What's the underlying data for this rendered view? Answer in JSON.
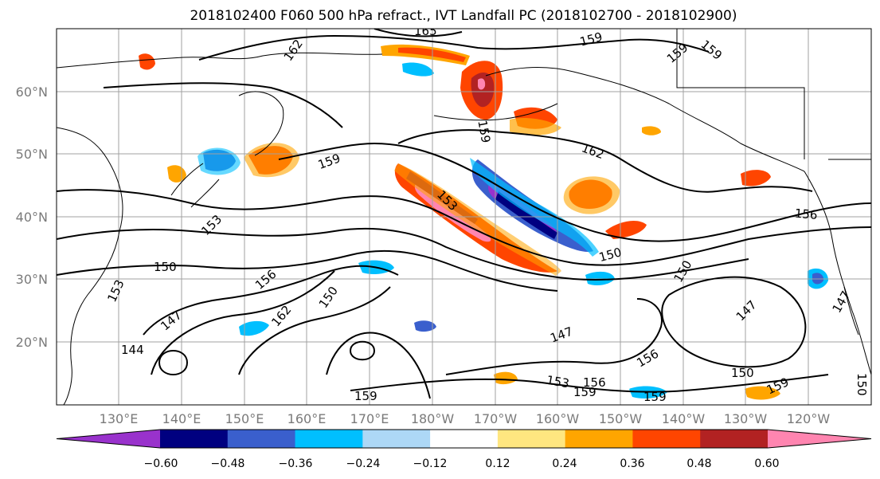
{
  "title": "2018102400 F060 500 hPa refract., IVT Landfall PC (2018102700 - 2018102900)",
  "map": {
    "lat_labels": [
      "60°N",
      "50°N",
      "40°N",
      "30°N",
      "20°N"
    ],
    "lon_labels": [
      "130°E",
      "140°E",
      "150°E",
      "160°E",
      "170°E",
      "180°W",
      "170°W",
      "160°W",
      "150°W",
      "140°W",
      "130°W",
      "120°W"
    ],
    "contour_labels": [
      "165",
      "162",
      "159",
      "159",
      "159",
      "159",
      "162",
      "156",
      "159",
      "153",
      "153",
      "150",
      "150",
      "150",
      "153",
      "156",
      "150",
      "162",
      "147",
      "147",
      "147",
      "144",
      "156",
      "159",
      "153",
      "156",
      "159",
      "159",
      "150",
      "159",
      "150",
      "147"
    ]
  },
  "colorbar": {
    "ticks": [
      "−0.60",
      "−0.48",
      "−0.36",
      "−0.24",
      "−0.12",
      "0.12",
      "0.24",
      "0.36",
      "0.48",
      "0.60"
    ],
    "colors": [
      "#9932cc",
      "#000080",
      "#3a5fcd",
      "#00bfff",
      "#add8f6",
      "#ffffff",
      "#ffe680",
      "#ffa500",
      "#ff4500",
      "#b22222",
      "#ff85b0"
    ]
  }
}
